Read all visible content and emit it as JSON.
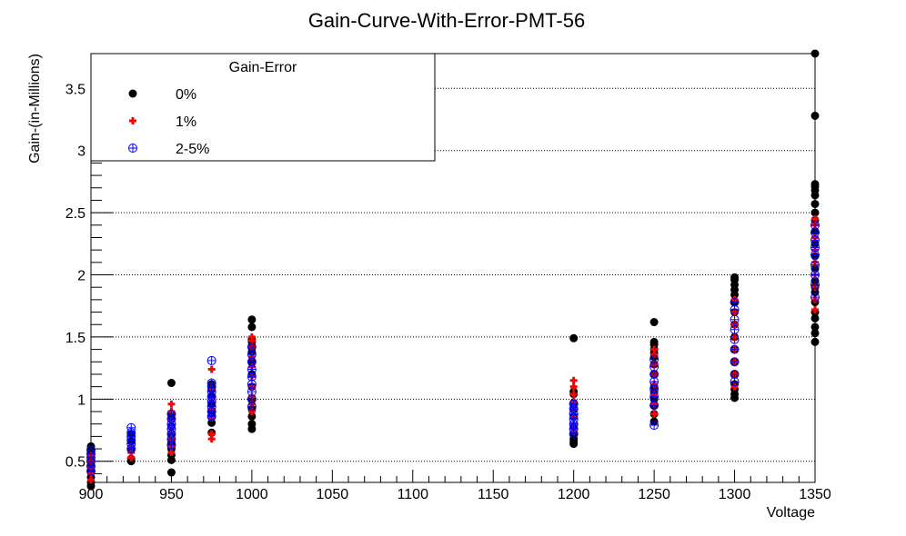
{
  "chart_data": {
    "type": "scatter",
    "title": "Gain-Curve-With-Error-PMT-56",
    "xlabel": "Voltage",
    "ylabel": "Gain-(in-Millions)",
    "xlim": [
      900,
      1350
    ],
    "ylim": [
      0.33,
      3.78
    ],
    "x_ticks": [
      900,
      950,
      1000,
      1050,
      1100,
      1150,
      1200,
      1250,
      1300,
      1350
    ],
    "y_ticks": [
      0.5,
      1,
      1.5,
      2,
      2.5,
      3,
      3.5
    ],
    "grid": "horizontal dotted",
    "legend": {
      "title": "Gain-Error",
      "placement": "top-left",
      "entries": [
        "0%",
        "1%",
        "2-5%"
      ]
    },
    "series": [
      {
        "name": "0%",
        "color": "#000000",
        "marker": "filled-circle",
        "points": [
          [
            900,
            0.3
          ],
          [
            900,
            0.33
          ],
          [
            900,
            0.37
          ],
          [
            900,
            0.42
          ],
          [
            900,
            0.46
          ],
          [
            900,
            0.5
          ],
          [
            900,
            0.55
          ],
          [
            900,
            0.58
          ],
          [
            900,
            0.62
          ],
          [
            925,
            0.5
          ],
          [
            925,
            0.52
          ],
          [
            925,
            0.6
          ],
          [
            925,
            0.66
          ],
          [
            925,
            0.72
          ],
          [
            950,
            0.41
          ],
          [
            950,
            0.51
          ],
          [
            950,
            0.55
          ],
          [
            950,
            0.6
          ],
          [
            950,
            0.65
          ],
          [
            950,
            0.72
          ],
          [
            950,
            0.78
          ],
          [
            950,
            0.84
          ],
          [
            950,
            0.88
          ],
          [
            950,
            1.13
          ],
          [
            975,
            0.73
          ],
          [
            975,
            0.81
          ],
          [
            975,
            0.86
          ],
          [
            975,
            0.9
          ],
          [
            975,
            0.96
          ],
          [
            975,
            1.02
          ],
          [
            975,
            1.08
          ],
          [
            975,
            1.12
          ],
          [
            1000,
            0.76
          ],
          [
            1000,
            0.8
          ],
          [
            1000,
            0.86
          ],
          [
            1000,
            0.92
          ],
          [
            1000,
            1.0
          ],
          [
            1000,
            1.1
          ],
          [
            1000,
            1.2
          ],
          [
            1000,
            1.3
          ],
          [
            1000,
            1.38
          ],
          [
            1000,
            1.42
          ],
          [
            1000,
            1.46
          ],
          [
            1000,
            1.48
          ],
          [
            1000,
            1.58
          ],
          [
            1000,
            1.64
          ],
          [
            1200,
            0.64
          ],
          [
            1200,
            0.66
          ],
          [
            1200,
            0.68
          ],
          [
            1200,
            0.72
          ],
          [
            1200,
            0.78
          ],
          [
            1200,
            0.86
          ],
          [
            1200,
            0.92
          ],
          [
            1200,
            0.97
          ],
          [
            1200,
            1.04
          ],
          [
            1200,
            1.06
          ],
          [
            1200,
            1.49
          ],
          [
            1250,
            0.82
          ],
          [
            1250,
            0.88
          ],
          [
            1250,
            0.95
          ],
          [
            1250,
            1.0
          ],
          [
            1250,
            1.05
          ],
          [
            1250,
            1.1
          ],
          [
            1250,
            1.2
          ],
          [
            1250,
            1.28
          ],
          [
            1250,
            1.34
          ],
          [
            1250,
            1.37
          ],
          [
            1250,
            1.4
          ],
          [
            1250,
            1.44
          ],
          [
            1250,
            1.46
          ],
          [
            1250,
            1.62
          ],
          [
            1300,
            1.01
          ],
          [
            1300,
            1.04
          ],
          [
            1300,
            1.08
          ],
          [
            1300,
            1.12
          ],
          [
            1300,
            1.2
          ],
          [
            1300,
            1.3
          ],
          [
            1300,
            1.4
          ],
          [
            1300,
            1.5
          ],
          [
            1300,
            1.6
          ],
          [
            1300,
            1.7
          ],
          [
            1300,
            1.78
          ],
          [
            1300,
            1.84
          ],
          [
            1300,
            1.88
          ],
          [
            1300,
            1.92
          ],
          [
            1300,
            1.96
          ],
          [
            1300,
            1.98
          ],
          [
            1350,
            1.46
          ],
          [
            1350,
            1.53
          ],
          [
            1350,
            1.58
          ],
          [
            1350,
            1.65
          ],
          [
            1350,
            1.7
          ],
          [
            1350,
            1.78
          ],
          [
            1350,
            1.86
          ],
          [
            1350,
            1.9
          ],
          [
            1350,
            1.95
          ],
          [
            1350,
            2.05
          ],
          [
            1350,
            2.15
          ],
          [
            1350,
            2.25
          ],
          [
            1350,
            2.35
          ],
          [
            1350,
            2.44
          ],
          [
            1350,
            2.5
          ],
          [
            1350,
            2.57
          ],
          [
            1350,
            2.64
          ],
          [
            1350,
            2.68
          ],
          [
            1350,
            2.71
          ],
          [
            1350,
            2.73
          ],
          [
            1350,
            3.28
          ],
          [
            1350,
            3.78
          ]
        ]
      },
      {
        "name": "1%",
        "color": "#ff0000",
        "marker": "plus",
        "points": [
          [
            900,
            0.35
          ],
          [
            900,
            0.4
          ],
          [
            900,
            0.45
          ],
          [
            900,
            0.5
          ],
          [
            900,
            0.55
          ],
          [
            925,
            0.53
          ],
          [
            925,
            0.57
          ],
          [
            925,
            0.62
          ],
          [
            950,
            0.57
          ],
          [
            950,
            0.62
          ],
          [
            950,
            0.68
          ],
          [
            950,
            0.73
          ],
          [
            950,
            0.77
          ],
          [
            950,
            0.83
          ],
          [
            950,
            0.9
          ],
          [
            950,
            0.96
          ],
          [
            975,
            0.68
          ],
          [
            975,
            0.72
          ],
          [
            975,
            0.85
          ],
          [
            975,
            0.92
          ],
          [
            975,
            1.0
          ],
          [
            975,
            1.08
          ],
          [
            975,
            1.24
          ],
          [
            1000,
            0.9
          ],
          [
            1000,
            0.96
          ],
          [
            1000,
            1.02
          ],
          [
            1000,
            1.1
          ],
          [
            1000,
            1.18
          ],
          [
            1000,
            1.26
          ],
          [
            1000,
            1.34
          ],
          [
            1000,
            1.42
          ],
          [
            1000,
            1.47
          ],
          [
            1000,
            1.5
          ],
          [
            1200,
            0.74
          ],
          [
            1200,
            0.8
          ],
          [
            1200,
            0.86
          ],
          [
            1200,
            0.92
          ],
          [
            1200,
            0.98
          ],
          [
            1200,
            1.04
          ],
          [
            1200,
            1.1
          ],
          [
            1200,
            1.15
          ],
          [
            1250,
            0.88
          ],
          [
            1250,
            0.96
          ],
          [
            1250,
            1.04
          ],
          [
            1250,
            1.12
          ],
          [
            1250,
            1.2
          ],
          [
            1250,
            1.28
          ],
          [
            1250,
            1.36
          ],
          [
            1250,
            1.4
          ],
          [
            1300,
            1.1
          ],
          [
            1300,
            1.2
          ],
          [
            1300,
            1.3
          ],
          [
            1300,
            1.4
          ],
          [
            1300,
            1.5
          ],
          [
            1300,
            1.6
          ],
          [
            1300,
            1.7
          ],
          [
            1300,
            1.8
          ],
          [
            1350,
            1.72
          ],
          [
            1350,
            1.8
          ],
          [
            1350,
            1.9
          ],
          [
            1350,
            2.0
          ],
          [
            1350,
            2.1
          ],
          [
            1350,
            2.2
          ],
          [
            1350,
            2.3
          ],
          [
            1350,
            2.4
          ],
          [
            1350,
            2.45
          ]
        ]
      },
      {
        "name": "2-5%",
        "color": "#0000ff",
        "marker": "circle-plus",
        "points": [
          [
            900,
            0.42
          ],
          [
            900,
            0.46
          ],
          [
            900,
            0.5
          ],
          [
            900,
            0.53
          ],
          [
            900,
            0.56
          ],
          [
            900,
            0.59
          ],
          [
            925,
            0.6
          ],
          [
            925,
            0.64
          ],
          [
            925,
            0.67
          ],
          [
            925,
            0.7
          ],
          [
            925,
            0.73
          ],
          [
            925,
            0.77
          ],
          [
            950,
            0.63
          ],
          [
            950,
            0.68
          ],
          [
            950,
            0.72
          ],
          [
            950,
            0.76
          ],
          [
            950,
            0.8
          ],
          [
            950,
            0.84
          ],
          [
            950,
            0.88
          ],
          [
            975,
            0.86
          ],
          [
            975,
            0.9
          ],
          [
            975,
            0.94
          ],
          [
            975,
            0.98
          ],
          [
            975,
            1.02
          ],
          [
            975,
            1.06
          ],
          [
            975,
            1.1
          ],
          [
            975,
            1.13
          ],
          [
            975,
            1.31
          ],
          [
            1000,
            0.94
          ],
          [
            1000,
            1.0
          ],
          [
            1000,
            1.06
          ],
          [
            1000,
            1.12
          ],
          [
            1000,
            1.18
          ],
          [
            1000,
            1.24
          ],
          [
            1000,
            1.3
          ],
          [
            1000,
            1.36
          ],
          [
            1000,
            1.42
          ],
          [
            1200,
            0.72
          ],
          [
            1200,
            0.76
          ],
          [
            1200,
            0.8
          ],
          [
            1200,
            0.84
          ],
          [
            1200,
            0.88
          ],
          [
            1200,
            0.92
          ],
          [
            1200,
            0.96
          ],
          [
            1250,
            0.79
          ],
          [
            1250,
            0.95
          ],
          [
            1250,
            1.02
          ],
          [
            1250,
            1.08
          ],
          [
            1250,
            1.14
          ],
          [
            1250,
            1.2
          ],
          [
            1250,
            1.26
          ],
          [
            1250,
            1.32
          ],
          [
            1300,
            1.14
          ],
          [
            1300,
            1.2
          ],
          [
            1300,
            1.3
          ],
          [
            1300,
            1.4
          ],
          [
            1300,
            1.48
          ],
          [
            1300,
            1.56
          ],
          [
            1300,
            1.64
          ],
          [
            1300,
            1.72
          ],
          [
            1300,
            1.78
          ],
          [
            1350,
            1.82
          ],
          [
            1350,
            1.92
          ],
          [
            1350,
            2.0
          ],
          [
            1350,
            2.08
          ],
          [
            1350,
            2.16
          ],
          [
            1350,
            2.22
          ],
          [
            1350,
            2.28
          ],
          [
            1350,
            2.34
          ],
          [
            1350,
            2.4
          ]
        ]
      }
    ]
  }
}
